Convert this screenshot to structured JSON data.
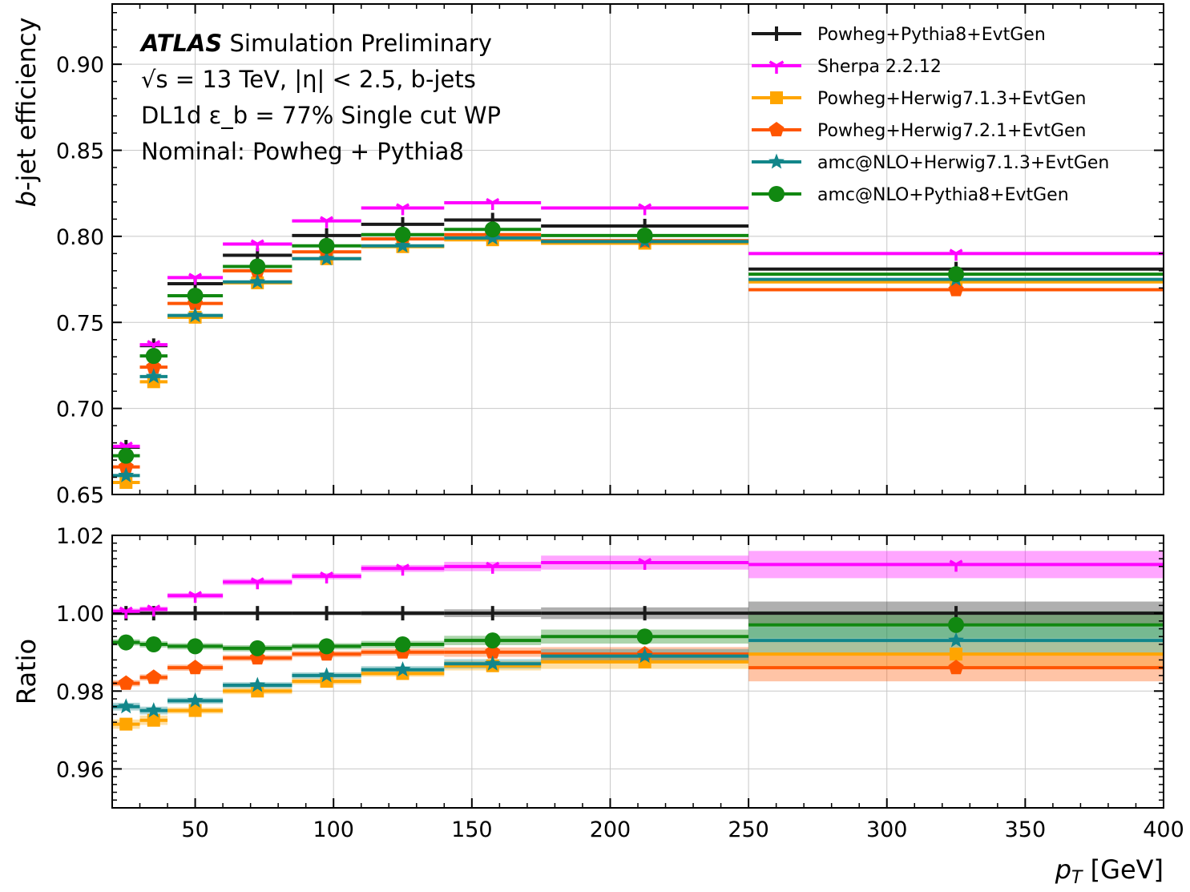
{
  "chart_data": {
    "type": "line",
    "subtype": "step histogram with markers, upper efficiency panel and lower ratio panel",
    "x_label_main": "p",
    "x_label_sub": "T",
    "x_label_unit": " [GeV]",
    "xlim": [
      20,
      400
    ],
    "x_ticks": [
      50,
      100,
      150,
      200,
      250,
      300,
      350,
      400
    ],
    "bin_edges": [
      20,
      30,
      40,
      60,
      85,
      110,
      140,
      175,
      250,
      400
    ],
    "bin_centers": [
      25,
      35,
      50,
      72.5,
      97.5,
      125,
      157.5,
      212.5,
      325
    ],
    "grid": true,
    "legend_position": "top-right",
    "annotation": {
      "atlas": "ATLAS",
      "label": "Simulation Preliminary",
      "line2": "√s = 13 TeV, |η| < 2.5, b-jets",
      "line3": "DL1d ε_b = 77% Single cut WP",
      "line4": "Nominal: Powheg + Pythia8"
    },
    "top_panel": {
      "ylabel_italic": "b",
      "ylabel_rest": "-jet efficiency",
      "ylim": [
        0.65,
        0.935
      ],
      "y_ticks": [
        "0.65",
        "0.70",
        "0.75",
        "0.80",
        "0.85",
        "0.90"
      ]
    },
    "bottom_panel": {
      "ylabel": "Ratio",
      "ylim": [
        0.95,
        1.02
      ],
      "y_ticks": [
        "0.96",
        "0.98",
        "1.00",
        "1.02"
      ]
    },
    "series": [
      {
        "name": "Powheg+Pythia8+EvtGen",
        "color": "#1a1a1a",
        "marker": "plus",
        "efficiency": [
          0.6775,
          0.7365,
          0.7725,
          0.789,
          0.8005,
          0.807,
          0.8095,
          0.806,
          0.781
        ],
        "ratio": [
          1.0,
          1.0,
          1.0,
          1.0,
          1.0,
          1.0,
          1.0,
          1.0,
          1.0
        ],
        "ratio_band": [
          0.0005,
          0.0005,
          0.0005,
          0.0005,
          0.0005,
          0.0006,
          0.001,
          0.0015,
          0.003
        ]
      },
      {
        "name": "Sherpa 2.2.12",
        "color": "#ff00ff",
        "marker": "tri_down",
        "efficiency": [
          0.678,
          0.737,
          0.776,
          0.7955,
          0.809,
          0.8165,
          0.8195,
          0.8165,
          0.79
        ],
        "ratio": [
          1.0005,
          1.001,
          1.0045,
          1.008,
          1.0095,
          1.0115,
          1.012,
          1.013,
          1.0125
        ],
        "ratio_band": [
          0.0007,
          0.0007,
          0.0007,
          0.0008,
          0.0008,
          0.0009,
          0.0012,
          0.0018,
          0.0035
        ]
      },
      {
        "name": "Powheg+Herwig7.1.3+EvtGen",
        "color": "#ffa500",
        "marker": "square",
        "efficiency": [
          0.657,
          0.7155,
          0.753,
          0.773,
          0.787,
          0.794,
          0.798,
          0.796,
          0.7735
        ],
        "ratio": [
          0.9715,
          0.9725,
          0.975,
          0.98,
          0.9825,
          0.9845,
          0.9865,
          0.9875,
          0.9895
        ],
        "ratio_band": [
          0.0012,
          0.0012,
          0.0008,
          0.0008,
          0.0008,
          0.0008,
          0.0012,
          0.0018,
          0.0035
        ]
      },
      {
        "name": "Powheg+Herwig7.2.1+EvtGen",
        "color": "#ff5500",
        "marker": "pentagon",
        "efficiency": [
          0.666,
          0.724,
          0.761,
          0.78,
          0.791,
          0.7985,
          0.801,
          0.7975,
          0.769
        ],
        "ratio": [
          0.982,
          0.9835,
          0.986,
          0.9885,
          0.9895,
          0.99,
          0.99,
          0.9895,
          0.986
        ],
        "ratio_band": [
          0.0008,
          0.0008,
          0.0008,
          0.0008,
          0.0008,
          0.0009,
          0.0012,
          0.0018,
          0.0035
        ]
      },
      {
        "name": "amc@NLO+Herwig7.1.3+EvtGen",
        "color": "#12868a",
        "marker": "star",
        "efficiency": [
          0.661,
          0.7185,
          0.754,
          0.7735,
          0.787,
          0.7945,
          0.799,
          0.797,
          0.775
        ],
        "ratio": [
          0.976,
          0.975,
          0.9775,
          0.9815,
          0.984,
          0.9855,
          0.987,
          0.989,
          0.993
        ],
        "ratio_band": [
          0.001,
          0.001,
          0.0008,
          0.0008,
          0.0008,
          0.0009,
          0.0012,
          0.0018,
          0.0035
        ]
      },
      {
        "name": "amc@NLO+Pythia8+EvtGen",
        "color": "#118811",
        "marker": "circle",
        "efficiency": [
          0.6725,
          0.7305,
          0.7655,
          0.7825,
          0.7945,
          0.801,
          0.804,
          0.8005,
          0.778
        ],
        "ratio": [
          0.9925,
          0.992,
          0.9915,
          0.991,
          0.9915,
          0.992,
          0.993,
          0.994,
          0.997
        ],
        "ratio_band": [
          0.0008,
          0.0008,
          0.0008,
          0.0008,
          0.0008,
          0.0009,
          0.0012,
          0.0018,
          0.0035
        ]
      }
    ]
  }
}
